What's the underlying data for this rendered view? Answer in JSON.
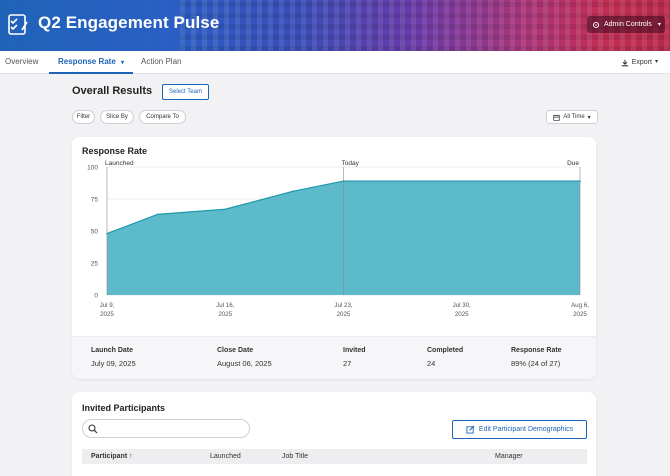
{
  "header": {
    "app_title": "Q2 Engagement Pulse",
    "logo_icon": "clipboard-check-icon",
    "admin_controls_label": "Admin Controls",
    "admin_icon": "gear-icon"
  },
  "nav": {
    "tabs": [
      {
        "label": "Overview"
      },
      {
        "label": "Response Rate",
        "active": true
      },
      {
        "label": "Action Plan"
      }
    ],
    "export_label": "Export",
    "export_icon": "download-icon"
  },
  "results": {
    "title": "Overall Results",
    "select_team_label": "Select Team",
    "filters": [
      "Filter",
      "Slice By",
      "Compare To"
    ],
    "time_range_label": "All Time",
    "time_range_icon": "calendar-icon"
  },
  "response_card": {
    "title": "Response Rate",
    "stats": [
      {
        "label": "Launch Date",
        "value": "July 09, 2025"
      },
      {
        "label": "Close Date",
        "value": "August 06, 2025"
      },
      {
        "label": "Invited",
        "value": "27"
      },
      {
        "label": "Completed",
        "value": "24"
      },
      {
        "label": "Response Rate",
        "value": "89% (24 of 27)"
      }
    ]
  },
  "chart_data": {
    "type": "area",
    "ylim": [
      0,
      100
    ],
    "yticks": [
      "0",
      "25",
      "50",
      "75",
      "100"
    ],
    "xticks": [
      {
        "line1": "Jul 9,",
        "line2": "2025"
      },
      {
        "line1": "Jul 16,",
        "line2": "2025"
      },
      {
        "line1": "Jul 23,",
        "line2": "2025"
      },
      {
        "line1": "Jul 30,",
        "line2": "2025"
      },
      {
        "line1": "Aug 6,",
        "line2": "2025"
      }
    ],
    "x": [
      "2025-07-09",
      "2025-07-12",
      "2025-07-16",
      "2025-07-20",
      "2025-07-23",
      "2025-08-06"
    ],
    "y": [
      48,
      63,
      67,
      81,
      89,
      89
    ],
    "markers": [
      {
        "label": "Launched",
        "date": "2025-07-09"
      },
      {
        "label": "Today",
        "date": "2025-07-23"
      },
      {
        "label": "Due",
        "date": "2025-08-06"
      }
    ],
    "fill_color": "#4fb4c6",
    "line_color": "#1f97ad"
  },
  "participants": {
    "title": "Invited Participants",
    "search_placeholder": "",
    "search_icon": "search-icon",
    "edit_button_label": "Edit Participant Demographics",
    "edit_icon": "edit-icon",
    "columns": [
      "Participant",
      "Launched",
      "Job Title",
      "Manager"
    ],
    "sort_icon": "arrow-up-icon"
  }
}
